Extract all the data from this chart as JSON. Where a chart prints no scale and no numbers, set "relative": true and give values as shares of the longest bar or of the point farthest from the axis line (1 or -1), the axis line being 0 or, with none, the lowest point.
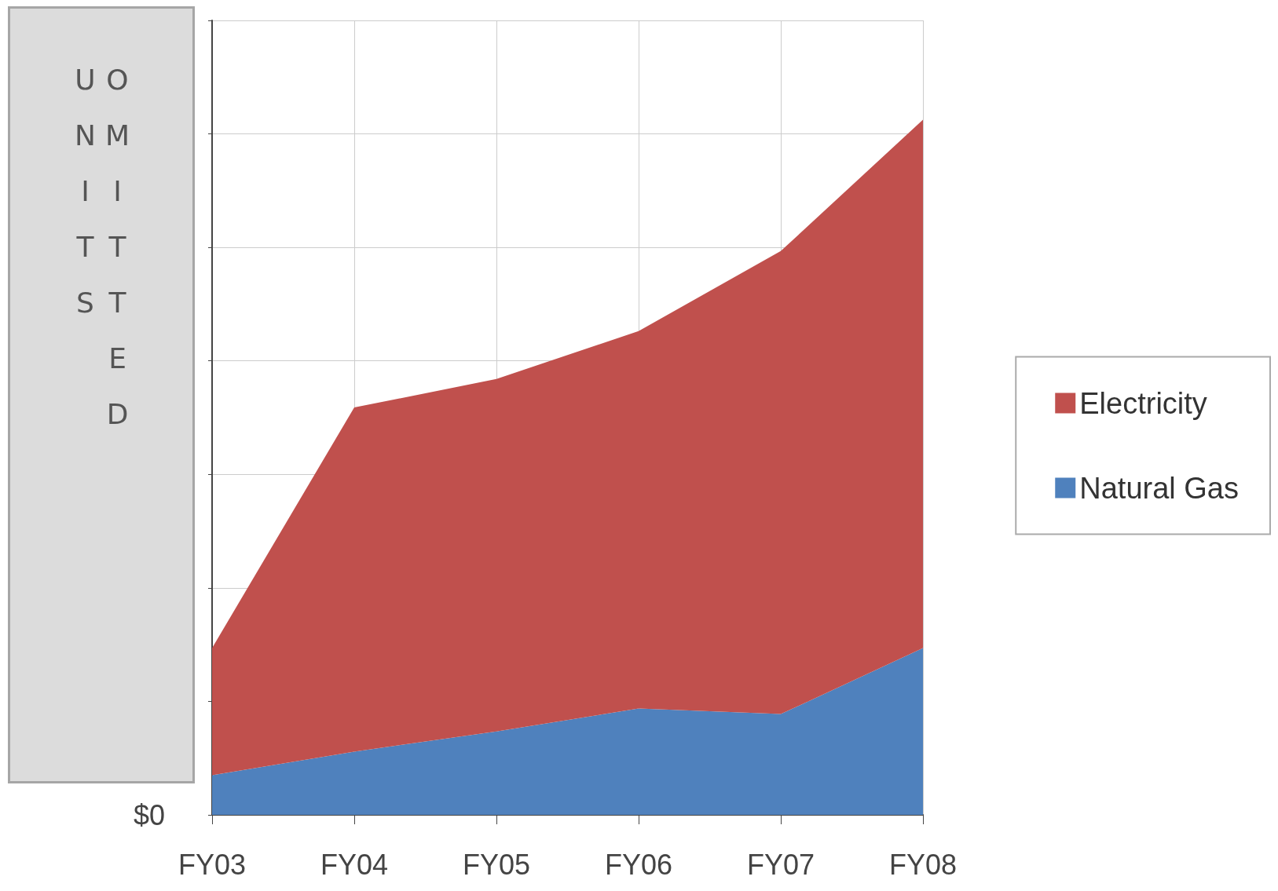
{
  "chart_data": {
    "type": "area",
    "stacked": true,
    "relative": true,
    "categories": [
      "FY03",
      "FY04",
      "FY05",
      "FY06",
      "FY07",
      "FY08"
    ],
    "series": [
      {
        "name": "Natural Gas",
        "color": "#4f81bd",
        "values": [
          0.057,
          0.091,
          0.12,
          0.153,
          0.145,
          0.24
        ]
      },
      {
        "name": "Electricity",
        "color": "#c0504d",
        "values": [
          0.183,
          0.495,
          0.507,
          0.543,
          0.666,
          0.76
        ]
      }
    ],
    "grid": true,
    "legend": "right",
    "annotations": [
      "UNITS OMITTED",
      "$0"
    ]
  }
}
